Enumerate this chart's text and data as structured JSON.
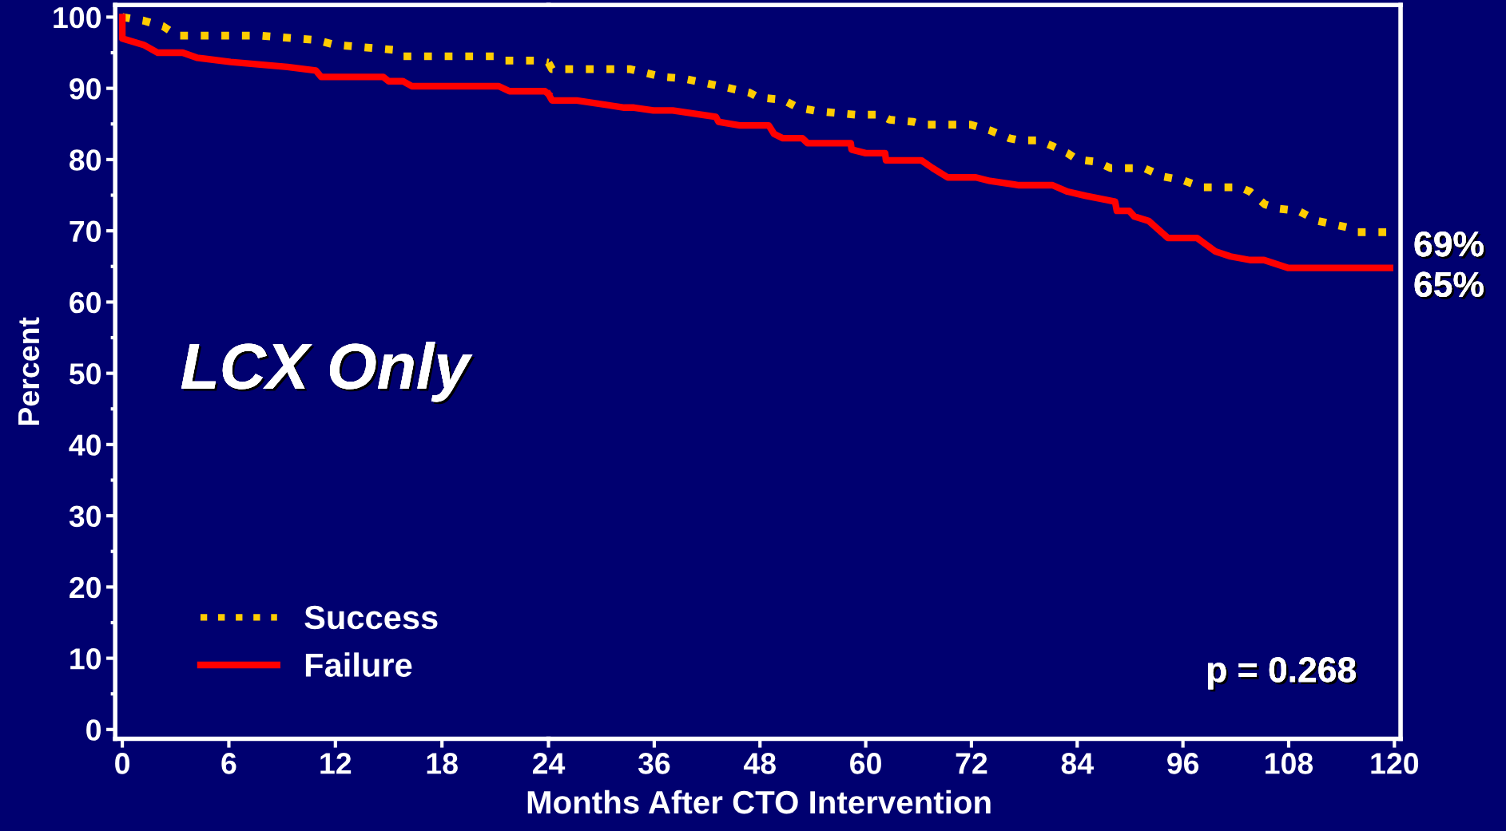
{
  "chart_data": [
    {
      "type": "line",
      "ylabel": "Percent",
      "xlim": [
        -0.4,
        24
      ],
      "ylim": [
        -1.3,
        101.7
      ],
      "xticks": [
        0,
        6,
        12,
        18
      ],
      "yticks": [
        0,
        10,
        20,
        30,
        40,
        50,
        60,
        70,
        80,
        90,
        100
      ],
      "legend": "bottom left",
      "series": [
        {
          "name": "Success",
          "color": "#ffcc00",
          "line_style": "dotted",
          "x": [
            0,
            1.2,
            2.3,
            3.1,
            7.7,
            10.9,
            12.0,
            15.3,
            15.8,
            21.0,
            21.5,
            23.4,
            24
          ],
          "values": [
            100,
            99.5,
            98.7,
            97.4,
            97.4,
            96.8,
            96.1,
            95.4,
            94.5,
            94.5,
            93.9,
            93.9,
            93.6
          ]
        },
        {
          "name": "Failure",
          "color": "#ff0000",
          "line_style": "solid",
          "x": [
            0,
            0,
            1.2,
            2.0,
            3.4,
            4.2,
            6.1,
            9.3,
            10.9,
            11.2,
            14.7,
            15.0,
            15.8,
            16.3,
            21.2,
            21.8,
            23.8,
            24
          ],
          "values": [
            100,
            97.0,
            96.1,
            95.0,
            95.0,
            94.3,
            93.7,
            93.0,
            92.5,
            91.6,
            91.6,
            91.0,
            91.0,
            90.3,
            90.3,
            89.6,
            89.6,
            89.2
          ]
        }
      ],
      "annotations": [
        "LCX Only"
      ]
    },
    {
      "type": "line",
      "xlabel": "Months After CTO Intervention",
      "xlim": [
        24,
        120.7
      ],
      "ylim": [
        -1.3,
        101.7
      ],
      "xticks": [
        24,
        36,
        48,
        60,
        72,
        84,
        96,
        108,
        120
      ],
      "tick_labels": "x",
      "series": [
        {
          "color": "#ffcc00",
          "line_style": "dotted",
          "x": [
            24,
            24.4,
            33.2,
            37.0,
            39.2,
            43.5,
            46.8,
            47.9,
            50.6,
            52.3,
            54.5,
            58.8,
            61.6,
            62.7,
            65.4,
            66.5,
            71.9,
            74.1,
            76.3,
            77.4,
            79.6,
            81.2,
            82.9,
            84.0,
            86.2,
            87.8,
            91.6,
            93.8,
            96.0,
            98.2,
            102.5,
            103.6,
            105.3,
            106.9,
            109.1,
            111.3,
            114.6,
            115.7,
            119.5
          ],
          "values": [
            93.6,
            92.7,
            92.7,
            91.6,
            91.4,
            90.3,
            89.4,
            88.7,
            88.4,
            87.3,
            86.8,
            86.3,
            86.3,
            85.6,
            85.3,
            84.9,
            84.9,
            84.1,
            83.0,
            82.7,
            82.7,
            81.9,
            80.9,
            80.0,
            79.7,
            78.8,
            78.8,
            77.6,
            77.1,
            76.1,
            76.1,
            75.5,
            73.7,
            73.1,
            72.8,
            71.4,
            70.5,
            69.8,
            69.8
          ]
        },
        {
          "color": "#ff0000",
          "line_style": "solid",
          "x": [
            24,
            24.4,
            27.2,
            32.6,
            33.7,
            35.9,
            38.1,
            43.0,
            43.3,
            45.7,
            49.0,
            49.6,
            50.6,
            52.8,
            53.4,
            58.3,
            58.4,
            60.0,
            62.2,
            62.3,
            66.3,
            67.6,
            69.3,
            72.5,
            74.1,
            77.4,
            81.2,
            82.9,
            85.0,
            88.3,
            88.5,
            89.9,
            90.5,
            92.1,
            94.3,
            97.6,
            99.7,
            101.4,
            103.6,
            105.2,
            107.9,
            119.5
          ],
          "values": [
            89.2,
            88.3,
            88.3,
            87.3,
            87.3,
            86.9,
            86.9,
            86.0,
            85.3,
            84.8,
            84.8,
            83.6,
            83.0,
            83.0,
            82.3,
            82.3,
            81.4,
            80.9,
            80.9,
            79.9,
            79.9,
            78.8,
            77.5,
            77.5,
            77.0,
            76.4,
            76.4,
            75.5,
            74.9,
            74.1,
            72.8,
            72.8,
            72.0,
            71.4,
            69.0,
            69.0,
            67.1,
            66.4,
            65.9,
            65.9,
            64.8,
            64.8
          ]
        }
      ],
      "annotations": [
        "p = 0.268",
        "69%",
        "65%"
      ]
    }
  ]
}
